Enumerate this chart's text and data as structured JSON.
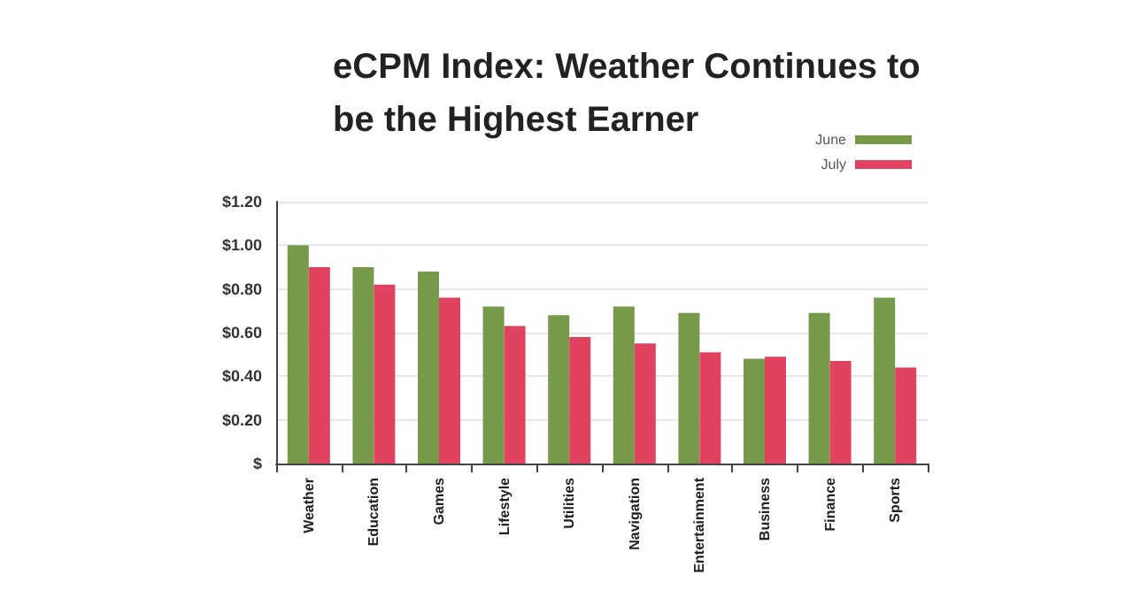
{
  "chart_data": {
    "type": "bar",
    "title": "eCPM Index: Weather Continues to be the Highest Earner",
    "categories": [
      "Weather",
      "Education",
      "Games",
      "Lifestyle",
      "Utilities",
      "Navigation",
      "Entertainment",
      "Business",
      "Finance",
      "Sports"
    ],
    "series": [
      {
        "name": "June",
        "color": "#76994a",
        "values": [
          1.0,
          0.9,
          0.88,
          0.72,
          0.68,
          0.72,
          0.69,
          0.48,
          0.69,
          0.76
        ]
      },
      {
        "name": "July",
        "color": "#e0435f",
        "values": [
          0.9,
          0.82,
          0.76,
          0.63,
          0.58,
          0.55,
          0.51,
          0.49,
          0.47,
          0.44
        ]
      }
    ],
    "ylim": [
      0,
      1.2
    ],
    "yticks": [
      {
        "value": 0,
        "label": "$"
      },
      {
        "value": 0.2,
        "label": "$0.20"
      },
      {
        "value": 0.4,
        "label": "$0.40"
      },
      {
        "value": 0.6,
        "label": "$0.60"
      },
      {
        "value": 0.8,
        "label": "$0.80"
      },
      {
        "value": 1.0,
        "label": "$1.00"
      },
      {
        "value": 1.2,
        "label": "$1.20"
      }
    ],
    "grid": "y",
    "legend": "top right"
  }
}
